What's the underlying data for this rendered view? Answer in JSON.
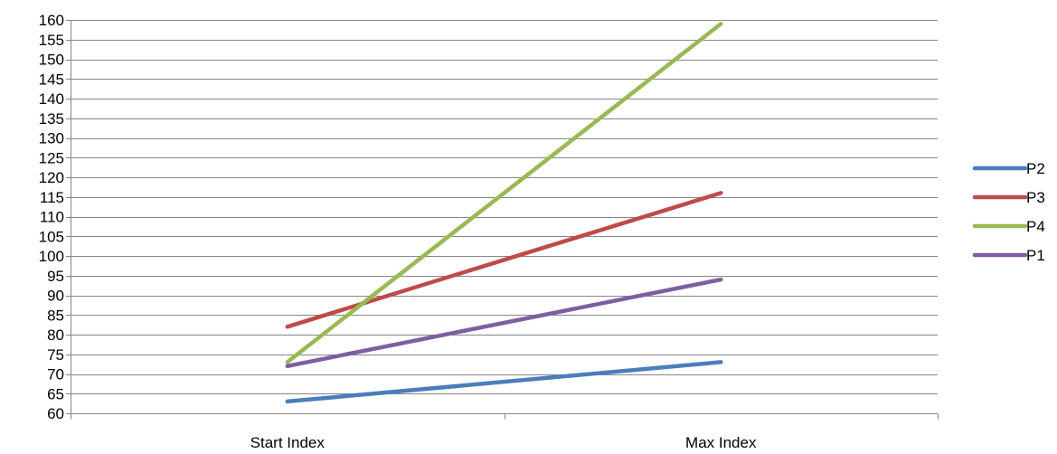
{
  "chart_data": {
    "type": "line",
    "title": "",
    "xlabel": "",
    "ylabel": "",
    "categories": [
      "Start Index",
      "Max Index"
    ],
    "ylim": [
      60,
      160
    ],
    "y_tick_step": 5,
    "grid": true,
    "legend_position": "right",
    "series": [
      {
        "name": "P2",
        "values": [
          63,
          73
        ],
        "color": "#4a7ebb"
      },
      {
        "name": "P3",
        "values": [
          82,
          116
        ],
        "color": "#be4b48"
      },
      {
        "name": "P4",
        "values": [
          73,
          159
        ],
        "color": "#98b954"
      },
      {
        "name": "P1",
        "values": [
          72,
          94
        ],
        "color": "#7d5fa0"
      }
    ]
  }
}
